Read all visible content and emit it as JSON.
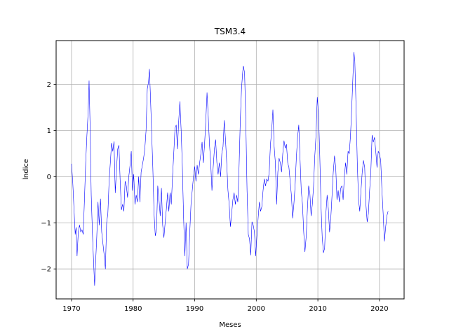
{
  "chart_data": {
    "type": "line",
    "title": "TSM3.4",
    "xlabel": "Meses",
    "ylabel": "Índice",
    "xlim": [
      1967.5,
      2024.0
    ],
    "ylim": [
      -2.65,
      2.95
    ],
    "grid": true,
    "xticks": [
      1970,
      1980,
      1990,
      2000,
      2010,
      2020
    ],
    "yticks": [
      -2,
      -1,
      0,
      1,
      2
    ],
    "series": [
      {
        "color": "#0000ff",
        "points": [
          [
            1970.0,
            0.28
          ],
          [
            1970.2,
            -0.12
          ],
          [
            1970.4,
            -0.7
          ],
          [
            1970.6,
            -1.25
          ],
          [
            1970.75,
            -1.1
          ],
          [
            1970.9,
            -1.72
          ],
          [
            1971.1,
            -1.2
          ],
          [
            1971.3,
            -1.05
          ],
          [
            1971.5,
            -1.2
          ],
          [
            1971.7,
            -1.15
          ],
          [
            1971.9,
            -1.25
          ],
          [
            1972.1,
            -0.5
          ],
          [
            1972.3,
            0.3
          ],
          [
            1972.5,
            0.9
          ],
          [
            1972.7,
            1.4
          ],
          [
            1972.85,
            2.08
          ],
          [
            1973.0,
            1.2
          ],
          [
            1973.2,
            -0.4
          ],
          [
            1973.4,
            -1.25
          ],
          [
            1973.6,
            -1.9
          ],
          [
            1973.75,
            -2.36
          ],
          [
            1973.9,
            -1.9
          ],
          [
            1974.1,
            -1.3
          ],
          [
            1974.3,
            -0.55
          ],
          [
            1974.5,
            -1.05
          ],
          [
            1974.7,
            -0.48
          ],
          [
            1974.9,
            -1.2
          ],
          [
            1975.1,
            -1.45
          ],
          [
            1975.3,
            -1.7
          ],
          [
            1975.5,
            -2.0
          ],
          [
            1975.7,
            -1.0
          ],
          [
            1975.9,
            -0.8
          ],
          [
            1976.1,
            -0.1
          ],
          [
            1976.3,
            0.3
          ],
          [
            1976.5,
            0.73
          ],
          [
            1976.7,
            0.55
          ],
          [
            1976.9,
            0.76
          ],
          [
            1977.1,
            -0.35
          ],
          [
            1977.3,
            0.15
          ],
          [
            1977.5,
            0.6
          ],
          [
            1977.7,
            0.68
          ],
          [
            1977.9,
            -0.1
          ],
          [
            1978.1,
            -0.72
          ],
          [
            1978.3,
            -0.6
          ],
          [
            1978.5,
            -0.75
          ],
          [
            1978.7,
            -0.1
          ],
          [
            1978.9,
            -0.2
          ],
          [
            1979.1,
            -0.45
          ],
          [
            1979.3,
            0.0
          ],
          [
            1979.5,
            0.25
          ],
          [
            1979.7,
            0.55
          ],
          [
            1979.9,
            -0.3
          ],
          [
            1980.1,
            0.05
          ],
          [
            1980.3,
            -0.6
          ],
          [
            1980.5,
            -0.4
          ],
          [
            1980.7,
            -0.55
          ],
          [
            1980.9,
            0.0
          ],
          [
            1981.1,
            -0.55
          ],
          [
            1981.3,
            0.1
          ],
          [
            1981.5,
            0.25
          ],
          [
            1981.7,
            0.4
          ],
          [
            1981.9,
            0.6
          ],
          [
            1982.1,
            1.0
          ],
          [
            1982.3,
            1.9
          ],
          [
            1982.5,
            2.05
          ],
          [
            1982.65,
            2.33
          ],
          [
            1982.8,
            1.8
          ],
          [
            1983.0,
            1.0
          ],
          [
            1983.2,
            0.2
          ],
          [
            1983.4,
            -0.8
          ],
          [
            1983.6,
            -1.28
          ],
          [
            1983.8,
            -1.15
          ],
          [
            1984.0,
            -0.2
          ],
          [
            1984.2,
            -0.5
          ],
          [
            1984.4,
            -0.85
          ],
          [
            1984.6,
            -0.25
          ],
          [
            1984.8,
            -1.05
          ],
          [
            1985.0,
            -1.32
          ],
          [
            1985.2,
            -1.0
          ],
          [
            1985.4,
            -0.7
          ],
          [
            1985.6,
            -0.35
          ],
          [
            1985.8,
            -0.75
          ],
          [
            1986.0,
            -0.35
          ],
          [
            1986.2,
            -0.6
          ],
          [
            1986.4,
            0.0
          ],
          [
            1986.6,
            0.5
          ],
          [
            1986.8,
            1.05
          ],
          [
            1987.0,
            1.12
          ],
          [
            1987.2,
            0.6
          ],
          [
            1987.4,
            1.2
          ],
          [
            1987.6,
            1.63
          ],
          [
            1987.8,
            1.0
          ],
          [
            1988.0,
            0.2
          ],
          [
            1988.2,
            -0.9
          ],
          [
            1988.4,
            -1.72
          ],
          [
            1988.6,
            -1.0
          ],
          [
            1988.8,
            -2.0
          ],
          [
            1989.0,
            -1.9
          ],
          [
            1989.2,
            -1.2
          ],
          [
            1989.4,
            -0.6
          ],
          [
            1989.6,
            -0.3
          ],
          [
            1989.8,
            0.0
          ],
          [
            1990.0,
            0.22
          ],
          [
            1990.2,
            -0.1
          ],
          [
            1990.4,
            0.25
          ],
          [
            1990.6,
            0.05
          ],
          [
            1990.8,
            0.3
          ],
          [
            1991.0,
            0.5
          ],
          [
            1991.2,
            0.75
          ],
          [
            1991.4,
            0.3
          ],
          [
            1991.6,
            0.7
          ],
          [
            1991.8,
            1.2
          ],
          [
            1992.0,
            1.82
          ],
          [
            1992.2,
            1.3
          ],
          [
            1992.4,
            0.7
          ],
          [
            1992.6,
            0.3
          ],
          [
            1992.8,
            -0.3
          ],
          [
            1993.0,
            0.2
          ],
          [
            1993.2,
            0.6
          ],
          [
            1993.4,
            0.8
          ],
          [
            1993.6,
            0.3
          ],
          [
            1993.8,
            0.05
          ],
          [
            1994.0,
            0.3
          ],
          [
            1994.2,
            0.0
          ],
          [
            1994.4,
            0.5
          ],
          [
            1994.6,
            0.65
          ],
          [
            1994.8,
            1.22
          ],
          [
            1995.0,
            0.8
          ],
          [
            1995.2,
            0.3
          ],
          [
            1995.4,
            -0.3
          ],
          [
            1995.6,
            -0.6
          ],
          [
            1995.8,
            -1.08
          ],
          [
            1996.0,
            -0.8
          ],
          [
            1996.2,
            -0.5
          ],
          [
            1996.4,
            -0.35
          ],
          [
            1996.6,
            -0.6
          ],
          [
            1996.8,
            -0.4
          ],
          [
            1997.0,
            -0.55
          ],
          [
            1997.2,
            0.2
          ],
          [
            1997.4,
            1.2
          ],
          [
            1997.6,
            1.9
          ],
          [
            1997.8,
            2.28
          ],
          [
            1997.9,
            2.4
          ],
          [
            1998.1,
            2.25
          ],
          [
            1998.3,
            1.2
          ],
          [
            1998.5,
            -0.3
          ],
          [
            1998.7,
            -1.25
          ],
          [
            1998.9,
            -1.35
          ],
          [
            1999.1,
            -1.7
          ],
          [
            1999.3,
            -0.98
          ],
          [
            1999.5,
            -1.05
          ],
          [
            1999.7,
            -1.2
          ],
          [
            1999.9,
            -1.72
          ],
          [
            2000.1,
            -1.3
          ],
          [
            2000.3,
            -0.9
          ],
          [
            2000.5,
            -0.55
          ],
          [
            2000.7,
            -0.75
          ],
          [
            2000.9,
            -0.65
          ],
          [
            2001.1,
            -0.3
          ],
          [
            2001.3,
            -0.05
          ],
          [
            2001.5,
            -0.2
          ],
          [
            2001.7,
            -0.05
          ],
          [
            2001.9,
            -0.1
          ],
          [
            2002.1,
            0.1
          ],
          [
            2002.3,
            0.7
          ],
          [
            2002.5,
            1.0
          ],
          [
            2002.7,
            1.45
          ],
          [
            2002.9,
            0.65
          ],
          [
            2003.1,
            0.3
          ],
          [
            2003.3,
            -0.6
          ],
          [
            2003.5,
            0.1
          ],
          [
            2003.7,
            0.4
          ],
          [
            2003.9,
            0.3
          ],
          [
            2004.1,
            0.1
          ],
          [
            2004.3,
            0.5
          ],
          [
            2004.5,
            0.78
          ],
          [
            2004.7,
            0.62
          ],
          [
            2004.9,
            0.7
          ],
          [
            2005.1,
            0.3
          ],
          [
            2005.3,
            0.2
          ],
          [
            2005.5,
            -0.1
          ],
          [
            2005.7,
            -0.4
          ],
          [
            2005.9,
            -0.9
          ],
          [
            2006.1,
            -0.6
          ],
          [
            2006.3,
            -0.2
          ],
          [
            2006.5,
            0.4
          ],
          [
            2006.7,
            0.85
          ],
          [
            2006.9,
            1.12
          ],
          [
            2007.1,
            0.4
          ],
          [
            2007.3,
            -0.3
          ],
          [
            2007.5,
            -0.6
          ],
          [
            2007.7,
            -1.2
          ],
          [
            2007.9,
            -1.63
          ],
          [
            2008.1,
            -1.3
          ],
          [
            2008.3,
            -0.7
          ],
          [
            2008.5,
            -0.2
          ],
          [
            2008.7,
            -0.35
          ],
          [
            2008.9,
            -0.85
          ],
          [
            2009.1,
            -0.6
          ],
          [
            2009.3,
            -0.2
          ],
          [
            2009.5,
            0.45
          ],
          [
            2009.7,
            0.9
          ],
          [
            2009.9,
            1.72
          ],
          [
            2010.1,
            1.4
          ],
          [
            2010.3,
            0.5
          ],
          [
            2010.5,
            -0.6
          ],
          [
            2010.7,
            -1.3
          ],
          [
            2010.9,
            -1.65
          ],
          [
            2011.1,
            -1.55
          ],
          [
            2011.3,
            -0.8
          ],
          [
            2011.5,
            -0.4
          ],
          [
            2011.7,
            -0.7
          ],
          [
            2011.9,
            -1.2
          ],
          [
            2012.1,
            -0.9
          ],
          [
            2012.3,
            -0.4
          ],
          [
            2012.5,
            0.1
          ],
          [
            2012.7,
            0.45
          ],
          [
            2012.9,
            0.2
          ],
          [
            2013.1,
            -0.5
          ],
          [
            2013.3,
            -0.3
          ],
          [
            2013.5,
            -0.55
          ],
          [
            2013.7,
            -0.25
          ],
          [
            2013.9,
            -0.2
          ],
          [
            2014.1,
            -0.5
          ],
          [
            2014.3,
            0.0
          ],
          [
            2014.5,
            0.3
          ],
          [
            2014.7,
            0.05
          ],
          [
            2014.9,
            0.55
          ],
          [
            2015.1,
            0.5
          ],
          [
            2015.3,
            0.9
          ],
          [
            2015.5,
            1.5
          ],
          [
            2015.7,
            2.2
          ],
          [
            2015.85,
            2.7
          ],
          [
            2016.0,
            2.5
          ],
          [
            2016.2,
            1.5
          ],
          [
            2016.4,
            0.3
          ],
          [
            2016.6,
            -0.5
          ],
          [
            2016.8,
            -0.75
          ],
          [
            2017.0,
            -0.3
          ],
          [
            2017.2,
            0.1
          ],
          [
            2017.4,
            0.35
          ],
          [
            2017.6,
            0.2
          ],
          [
            2017.8,
            -0.6
          ],
          [
            2018.0,
            -0.98
          ],
          [
            2018.2,
            -0.8
          ],
          [
            2018.4,
            -0.3
          ],
          [
            2018.6,
            0.1
          ],
          [
            2018.8,
            0.9
          ],
          [
            2019.0,
            0.75
          ],
          [
            2019.2,
            0.85
          ],
          [
            2019.4,
            0.55
          ],
          [
            2019.6,
            0.2
          ],
          [
            2019.8,
            0.55
          ],
          [
            2020.0,
            0.5
          ],
          [
            2020.2,
            0.35
          ],
          [
            2020.4,
            -0.3
          ],
          [
            2020.6,
            -0.8
          ],
          [
            2020.8,
            -1.4
          ],
          [
            2021.0,
            -1.1
          ],
          [
            2021.2,
            -0.85
          ],
          [
            2021.4,
            -0.75
          ]
        ]
      }
    ]
  }
}
